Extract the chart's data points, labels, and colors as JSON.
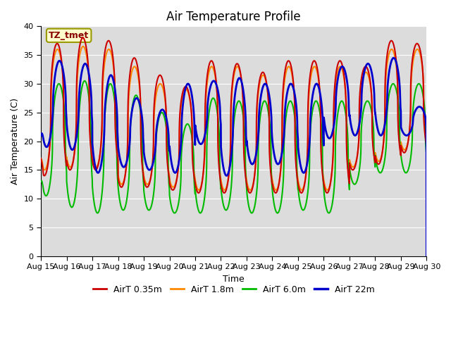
{
  "title": "Air Temperature Profile",
  "xlabel": "Time",
  "ylabel": "Air Temperature (C)",
  "ylim": [
    0,
    40
  ],
  "yticks": [
    0,
    5,
    10,
    15,
    20,
    25,
    30,
    35,
    40
  ],
  "xtick_labels": [
    "Aug 15",
    "Aug 16",
    "Aug 17",
    "Aug 18",
    "Aug 19",
    "Aug 20",
    "Aug 21",
    "Aug 22",
    "Aug 23",
    "Aug 24",
    "Aug 25",
    "Aug 26",
    "Aug 27",
    "Aug 28",
    "Aug 29",
    "Aug 30"
  ],
  "series": [
    {
      "label": "AirT 0.35m",
      "color": "#cc0000",
      "lw": 1.5
    },
    {
      "label": "AirT 1.8m",
      "color": "#ff8800",
      "lw": 1.5
    },
    {
      "label": "AirT 6.0m",
      "color": "#00bb00",
      "lw": 1.5
    },
    {
      "label": "AirT 22m",
      "color": "#0000cc",
      "lw": 2.0
    }
  ],
  "annotation_text": "TZ_tmet",
  "annotation_color": "#880000",
  "annotation_bg": "#ffffcc",
  "bg_color": "#dcdcdc",
  "grid_color": "#ffffff",
  "title_fontsize": 12,
  "axis_fontsize": 9,
  "tick_fontsize": 8,
  "legend_fontsize": 9
}
